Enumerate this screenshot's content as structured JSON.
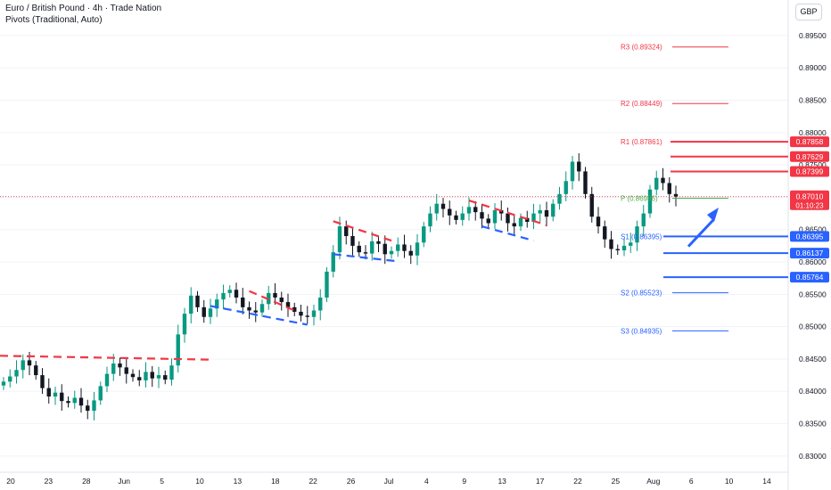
{
  "header": {
    "title": "Euro / British Pound · 4h · Trade Nation",
    "indicator": "Pivots (Traditional, Auto)",
    "currency": "GBP"
  },
  "colors": {
    "up": "#089981",
    "down": "#131722",
    "resistance": "#f23645",
    "support": "#2962ff",
    "pivot": "#4caf50",
    "grid": "#f0f3fa",
    "text": "#131722"
  },
  "chart_data": {
    "type": "candlestick",
    "instrument": "EUR/GBP",
    "timeframe": "4h",
    "ylim": [
      0.8275,
      0.9005
    ],
    "y_ticks": [
      "0.89500",
      "0.89000",
      "0.88500",
      "0.88000",
      "0.87500",
      "0.87000",
      "0.86500",
      "0.86000",
      "0.85500",
      "0.85000",
      "0.84500",
      "0.84000",
      "0.83500",
      "0.83000"
    ],
    "x_ticks": [
      "20",
      "23",
      "28",
      "Jun",
      "5",
      "10",
      "13",
      "18",
      "22",
      "26",
      "Jul",
      "4",
      "9",
      "13",
      "17",
      "22",
      "25",
      "Aug",
      "6",
      "10",
      "14"
    ],
    "current_price": {
      "value": "0.87010",
      "countdown": "01:10:23",
      "y": 0.8701
    },
    "pivots": [
      {
        "label": "R3 (0.89324)",
        "value": 0.89324,
        "kind": "resistance"
      },
      {
        "label": "R2 (0.88449)",
        "value": 0.88449,
        "kind": "resistance"
      },
      {
        "label": "R1 (0.87861)",
        "value": 0.87861,
        "kind": "resistance"
      },
      {
        "label": "P (0.86986)",
        "value": 0.86986,
        "kind": "pivot"
      },
      {
        "label": "S1 (0.86395)",
        "value": 0.86395,
        "kind": "support"
      },
      {
        "label": "S2 (0.85523)",
        "value": 0.85523,
        "kind": "support"
      },
      {
        "label": "S3 (0.84935)",
        "value": 0.84935,
        "kind": "support"
      }
    ],
    "levels": [
      {
        "value": 0.87858,
        "label": "0.87858",
        "kind": "resistance"
      },
      {
        "value": 0.87629,
        "label": "0.87629",
        "kind": "resistance"
      },
      {
        "value": 0.87399,
        "label": "0.87399",
        "kind": "resistance"
      },
      {
        "value": 0.86395,
        "label": "0.86395",
        "kind": "support"
      },
      {
        "value": 0.86137,
        "label": "0.86137",
        "kind": "support"
      },
      {
        "value": 0.85764,
        "label": "0.85764",
        "kind": "support"
      }
    ],
    "closes": [
      0.8415,
      0.8423,
      0.8433,
      0.8448,
      0.844,
      0.8425,
      0.8405,
      0.8392,
      0.8398,
      0.8385,
      0.8382,
      0.839,
      0.8378,
      0.837,
      0.8386,
      0.8408,
      0.8427,
      0.8443,
      0.8437,
      0.8427,
      0.8422,
      0.8417,
      0.843,
      0.842,
      0.8425,
      0.8418,
      0.844,
      0.8488,
      0.852,
      0.8548,
      0.853,
      0.8515,
      0.8528,
      0.8542,
      0.8552,
      0.8557,
      0.8545,
      0.853,
      0.8525,
      0.8522,
      0.8535,
      0.8552,
      0.8545,
      0.8538,
      0.853,
      0.8523,
      0.8517,
      0.8515,
      0.8525,
      0.8545,
      0.8585,
      0.8615,
      0.8655,
      0.864,
      0.8625,
      0.8615,
      0.8613,
      0.8632,
      0.8628,
      0.8612,
      0.8617,
      0.8627,
      0.8617,
      0.861,
      0.863,
      0.8655,
      0.8675,
      0.869,
      0.8682,
      0.8672,
      0.8665,
      0.8675,
      0.8685,
      0.8677,
      0.8667,
      0.866,
      0.868,
      0.8675,
      0.866,
      0.8655,
      0.8668,
      0.8662,
      0.8675,
      0.868,
      0.867,
      0.869,
      0.8705,
      0.8725,
      0.8755,
      0.874,
      0.8705,
      0.867,
      0.8655,
      0.8635,
      0.862,
      0.8618,
      0.8625,
      0.863,
      0.8655,
      0.8675,
      0.8712,
      0.873,
      0.8722,
      0.8705,
      0.8701
    ]
  }
}
